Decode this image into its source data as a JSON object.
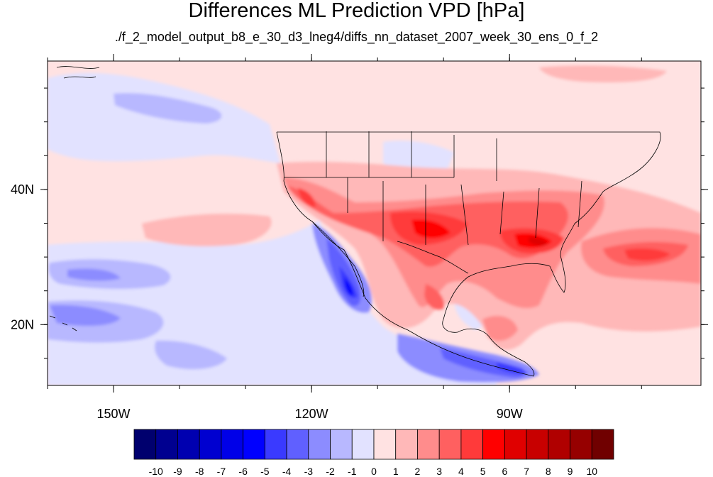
{
  "title": "Differences ML Prediction VPD [hPa]",
  "subtitle": "./f_2_model_output_b8_e_30_d3_lneg4/diffs_nn_dataset_2007_week_30_ens_0_f_2",
  "map": {
    "lon_range": [
      -160,
      -61
    ],
    "lat_range": [
      11,
      59
    ],
    "lon_ticks": [
      {
        "value": -150,
        "label": "150W"
      },
      {
        "value": -120,
        "label": "120W"
      },
      {
        "value": -90,
        "label": "90W"
      }
    ],
    "lat_ticks": [
      {
        "value": 40,
        "label": "40N"
      },
      {
        "value": 20,
        "label": "20N"
      }
    ]
  },
  "colorbar": {
    "labels": [
      "-10",
      "-9",
      "-8",
      "-7",
      "-6",
      "-5",
      "-4",
      "-3",
      "-2",
      "-1",
      "0",
      "1",
      "2",
      "3",
      "4",
      "5",
      "6",
      "7",
      "8",
      "9",
      "10"
    ],
    "colors": [
      "#00006e",
      "#000090",
      "#0000b0",
      "#0000d0",
      "#0000e8",
      "#0000ff",
      "#3a3aff",
      "#6060ff",
      "#8c8cff",
      "#b8b8ff",
      "#e2e2ff",
      "#ffe2e2",
      "#ffb8b8",
      "#ff8c8c",
      "#ff6060",
      "#ff3a3a",
      "#ff0000",
      "#e00000",
      "#c80000",
      "#b00000",
      "#960000",
      "#700000"
    ]
  }
}
